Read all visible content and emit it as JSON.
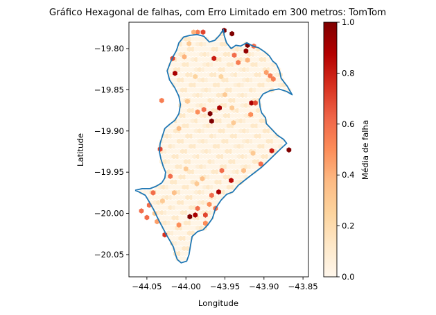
{
  "chart_data": {
    "type": "heatmap",
    "subtype": "hexbin",
    "title": "Gráfico Hexagonal de falhas, com Erro Limitado em 300 metros: TomTom",
    "xlabel": "Longitude",
    "ylabel": "Latitude",
    "xlim": [
      -44.073,
      -43.843
    ],
    "ylim": [
      -20.077,
      -19.768
    ],
    "xticks": [
      -44.05,
      -44.0,
      -43.95,
      -43.9,
      -43.85
    ],
    "xtick_labels": [
      "−44.05",
      "−44.00",
      "−43.95",
      "−43.90",
      "−43.85"
    ],
    "yticks": [
      -19.8,
      -19.85,
      -19.9,
      -19.95,
      -20.0,
      -20.05
    ],
    "ytick_labels": [
      "−19.80",
      "−19.85",
      "−19.90",
      "−19.95",
      "−20.00",
      "−20.05"
    ],
    "grid": false,
    "colormap": "OrRd",
    "colormap_stops": [
      "#fff7ec",
      "#fee8c8",
      "#fdd49e",
      "#fdbb84",
      "#fc8d59",
      "#ef6548",
      "#d7301f",
      "#b30000",
      "#7f0000"
    ],
    "colorbar": {
      "label": "Média de falha",
      "range": [
        0,
        1
      ],
      "ticks": [
        0.0,
        0.2,
        0.4,
        0.6,
        0.8,
        1.0
      ],
      "tick_labels": [
        "0.0",
        "0.2",
        "0.4",
        "0.6",
        "0.8",
        "1.0"
      ]
    },
    "boundary": {
      "name": "city boundary",
      "color": "#1f77b4",
      "points": [
        [
          -44.065,
          -19.972
        ],
        [
          -44.06,
          -19.974
        ],
        [
          -44.052,
          -19.978
        ],
        [
          -44.047,
          -19.986
        ],
        [
          -44.041,
          -19.996
        ],
        [
          -44.036,
          -20.006
        ],
        [
          -44.031,
          -20.015
        ],
        [
          -44.025,
          -20.026
        ],
        [
          -44.02,
          -20.034
        ],
        [
          -44.016,
          -20.041
        ],
        [
          -44.013,
          -20.051
        ],
        [
          -44.011,
          -20.056
        ],
        [
          -44.006,
          -20.06
        ],
        [
          -43.999,
          -20.058
        ],
        [
          -43.996,
          -20.05
        ],
        [
          -43.994,
          -20.038
        ],
        [
          -43.992,
          -20.028
        ],
        [
          -43.985,
          -20.022
        ],
        [
          -43.978,
          -20.02
        ],
        [
          -43.972,
          -20.014
        ],
        [
          -43.966,
          -20.006
        ],
        [
          -43.962,
          -19.994
        ],
        [
          -43.955,
          -19.984
        ],
        [
          -43.948,
          -19.977
        ],
        [
          -43.94,
          -19.974
        ],
        [
          -43.933,
          -19.966
        ],
        [
          -43.925,
          -19.96
        ],
        [
          -43.914,
          -19.952
        ],
        [
          -43.903,
          -19.944
        ],
        [
          -43.892,
          -19.934
        ],
        [
          -43.879,
          -19.922
        ],
        [
          -43.871,
          -19.915
        ],
        [
          -43.875,
          -19.91
        ],
        [
          -43.883,
          -19.905
        ],
        [
          -43.89,
          -19.898
        ],
        [
          -43.897,
          -19.891
        ],
        [
          -43.898,
          -19.884
        ],
        [
          -43.903,
          -19.878
        ],
        [
          -43.905,
          -19.871
        ],
        [
          -43.906,
          -19.862
        ],
        [
          -43.901,
          -19.855
        ],
        [
          -43.892,
          -19.851
        ],
        [
          -43.881,
          -19.849
        ],
        [
          -43.871,
          -19.852
        ],
        [
          -43.864,
          -19.856
        ],
        [
          -43.87,
          -19.846
        ],
        [
          -43.878,
          -19.836
        ],
        [
          -43.88,
          -19.827
        ],
        [
          -43.884,
          -19.819
        ],
        [
          -43.889,
          -19.815
        ],
        [
          -43.893,
          -19.809
        ],
        [
          -43.899,
          -19.804
        ],
        [
          -43.907,
          -19.799
        ],
        [
          -43.914,
          -19.797
        ],
        [
          -43.922,
          -19.793
        ],
        [
          -43.93,
          -19.797
        ],
        [
          -43.936,
          -19.796
        ],
        [
          -43.942,
          -19.8
        ],
        [
          -43.948,
          -19.793
        ],
        [
          -43.951,
          -19.784
        ],
        [
          -43.952,
          -19.777
        ],
        [
          -43.957,
          -19.784
        ],
        [
          -43.963,
          -19.79
        ],
        [
          -43.97,
          -19.792
        ],
        [
          -43.977,
          -19.785
        ],
        [
          -43.986,
          -19.783
        ],
        [
          -43.995,
          -19.784
        ],
        [
          -44.003,
          -19.786
        ],
        [
          -44.009,
          -19.793
        ],
        [
          -44.012,
          -19.802
        ],
        [
          -44.016,
          -19.809
        ],
        [
          -44.02,
          -19.817
        ],
        [
          -44.024,
          -19.827
        ],
        [
          -44.021,
          -19.838
        ],
        [
          -44.014,
          -19.848
        ],
        [
          -44.009,
          -19.858
        ],
        [
          -44.007,
          -19.868
        ],
        [
          -44.009,
          -19.879
        ],
        [
          -44.014,
          -19.887
        ],
        [
          -44.021,
          -19.892
        ],
        [
          -44.027,
          -19.897
        ],
        [
          -44.03,
          -19.906
        ],
        [
          -44.033,
          -19.915
        ],
        [
          -44.034,
          -19.925
        ],
        [
          -44.032,
          -19.934
        ],
        [
          -44.029,
          -19.943
        ],
        [
          -44.026,
          -19.95
        ],
        [
          -44.027,
          -19.957
        ],
        [
          -44.031,
          -19.963
        ],
        [
          -44.038,
          -19.967
        ],
        [
          -44.046,
          -19.97
        ],
        [
          -44.056,
          -19.97
        ],
        [
          -44.065,
          -19.972
        ]
      ]
    },
    "hex_points": [
      {
        "x": -43.951,
        "y": -19.778,
        "v": 1.0
      },
      {
        "x": -43.941,
        "y": -19.782,
        "v": 1.0
      },
      {
        "x": -43.921,
        "y": -19.796,
        "v": 1.0
      },
      {
        "x": -43.923,
        "y": -19.803,
        "v": 0.95
      },
      {
        "x": -44.014,
        "y": -19.83,
        "v": 0.9
      },
      {
        "x": -43.957,
        "y": -19.872,
        "v": 0.9
      },
      {
        "x": -43.969,
        "y": -19.879,
        "v": 1.0
      },
      {
        "x": -43.967,
        "y": -19.888,
        "v": 1.0
      },
      {
        "x": -43.868,
        "y": -19.923,
        "v": 1.0
      },
      {
        "x": -43.942,
        "y": -19.96,
        "v": 0.85
      },
      {
        "x": -43.958,
        "y": -19.974,
        "v": 0.9
      },
      {
        "x": -43.995,
        "y": -20.004,
        "v": 1.0
      },
      {
        "x": -43.988,
        "y": -20.002,
        "v": 0.9
      },
      {
        "x": -43.916,
        "y": -19.866,
        "v": 0.9
      },
      {
        "x": -43.911,
        "y": -19.866,
        "v": 0.7
      },
      {
        "x": -43.964,
        "y": -19.812,
        "v": 0.8
      },
      {
        "x": -43.978,
        "y": -19.78,
        "v": 0.7
      },
      {
        "x": -43.985,
        "y": -19.78,
        "v": 0.55
      },
      {
        "x": -43.99,
        "y": -19.78,
        "v": 0.4
      },
      {
        "x": -43.913,
        "y": -19.797,
        "v": 0.6
      },
      {
        "x": -43.938,
        "y": -19.808,
        "v": 0.6
      },
      {
        "x": -43.933,
        "y": -19.817,
        "v": 0.55
      },
      {
        "x": -43.921,
        "y": -19.814,
        "v": 0.4
      },
      {
        "x": -43.892,
        "y": -19.833,
        "v": 0.55
      },
      {
        "x": -43.888,
        "y": -19.837,
        "v": 0.55
      },
      {
        "x": -43.897,
        "y": -19.829,
        "v": 0.45
      },
      {
        "x": -44.017,
        "y": -19.812,
        "v": 0.7
      },
      {
        "x": -44.031,
        "y": -19.863,
        "v": 0.55
      },
      {
        "x": -44.033,
        "y": -19.922,
        "v": 0.7
      },
      {
        "x": -43.977,
        "y": -19.874,
        "v": 0.6
      },
      {
        "x": -43.985,
        "y": -19.877,
        "v": 0.5
      },
      {
        "x": -43.917,
        "y": -19.88,
        "v": 0.5
      },
      {
        "x": -43.89,
        "y": -19.924,
        "v": 0.8
      },
      {
        "x": -43.904,
        "y": -19.94,
        "v": 0.6
      },
      {
        "x": -43.954,
        "y": -19.948,
        "v": 0.6
      },
      {
        "x": -44.02,
        "y": -19.955,
        "v": 0.6
      },
      {
        "x": -44.042,
        "y": -19.975,
        "v": 0.6
      },
      {
        "x": -44.047,
        "y": -19.99,
        "v": 0.6
      },
      {
        "x": -44.057,
        "y": -19.997,
        "v": 0.6
      },
      {
        "x": -44.05,
        "y": -20.005,
        "v": 0.6
      },
      {
        "x": -44.037,
        "y": -20.01,
        "v": 0.45
      },
      {
        "x": -44.027,
        "y": -20.026,
        "v": 0.75
      },
      {
        "x": -44.009,
        "y": -20.014,
        "v": 0.5
      },
      {
        "x": -43.985,
        "y": -19.994,
        "v": 0.6
      },
      {
        "x": -43.975,
        "y": -20.002,
        "v": 0.7
      },
      {
        "x": -43.97,
        "y": -19.989,
        "v": 0.5
      },
      {
        "x": -43.967,
        "y": -19.978,
        "v": 0.6
      },
      {
        "x": -43.962,
        "y": -19.994,
        "v": 0.6
      },
      {
        "x": -43.926,
        "y": -19.948,
        "v": 0.35
      },
      {
        "x": -43.914,
        "y": -19.927,
        "v": 0.3
      },
      {
        "x": -43.939,
        "y": -19.89,
        "v": 0.3
      },
      {
        "x": -44.0,
        "y": -19.946,
        "v": 0.3
      },
      {
        "x": -44.009,
        "y": -19.897,
        "v": 0.35
      },
      {
        "x": -43.998,
        "y": -19.864,
        "v": 0.3
      },
      {
        "x": -43.988,
        "y": -19.834,
        "v": 0.25
      },
      {
        "x": -43.955,
        "y": -19.834,
        "v": 0.25
      },
      {
        "x": -43.95,
        "y": -19.856,
        "v": 0.3
      },
      {
        "x": -43.941,
        "y": -19.872,
        "v": 0.3
      },
      {
        "x": -44.002,
        "y": -19.81,
        "v": 0.4
      },
      {
        "x": -43.996,
        "y": -19.794,
        "v": 0.3
      },
      {
        "x": -44.03,
        "y": -19.985,
        "v": 0.3
      },
      {
        "x": -44.04,
        "y": -20.0,
        "v": 0.3
      },
      {
        "x": -44.015,
        "y": -19.975,
        "v": 0.35
      },
      {
        "x": -43.986,
        "y": -19.964,
        "v": 0.3
      },
      {
        "x": -43.979,
        "y": -19.958,
        "v": 0.35
      },
      {
        "x": -43.975,
        "y": -20.012,
        "v": 0.5
      }
    ]
  }
}
